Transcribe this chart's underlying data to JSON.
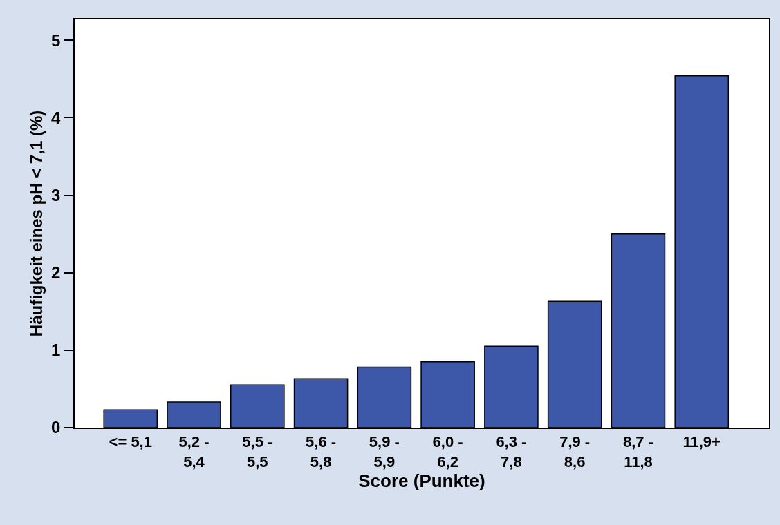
{
  "chart_data": {
    "type": "bar",
    "xlabel": "Score (Punkte)",
    "ylabel": "Häufigkeit eines pH < 7,1 (%)",
    "categories": [
      "<= 5,1",
      "5,2 - 5,4",
      "5,5 - 5,5",
      "5,6 - 5,8",
      "5,9 - 5,9",
      "6,0 - 6,2",
      "6,3 - 7,8",
      "7,9 - 8,6",
      "8,7 - 11,8",
      "11,9+"
    ],
    "values": [
      0.23,
      0.33,
      0.55,
      0.63,
      0.78,
      0.85,
      1.05,
      1.63,
      2.5,
      4.54
    ],
    "color": "#3d58a8",
    "ylim": [
      0,
      5.27
    ],
    "yticks": [
      0,
      1,
      2,
      3,
      4,
      5
    ],
    "grid": false
  }
}
